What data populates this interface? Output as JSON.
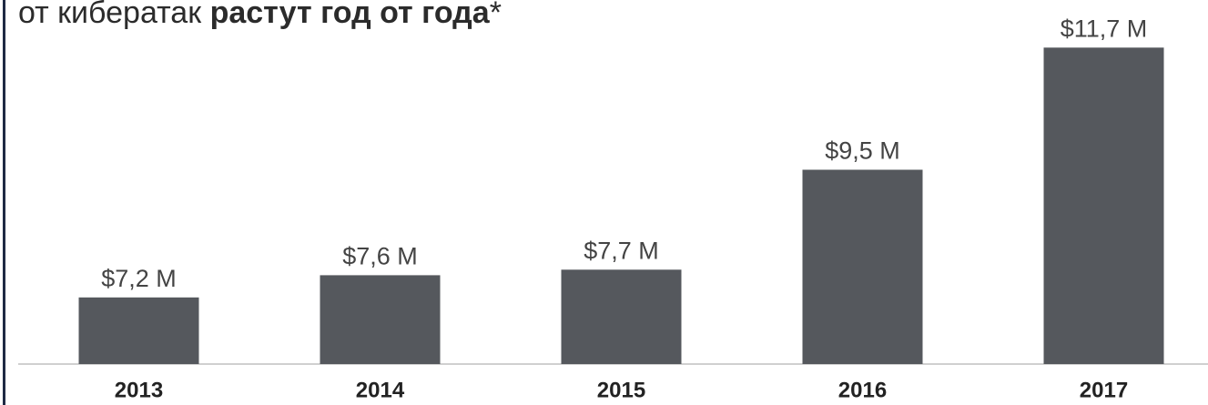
{
  "chart_data": {
    "type": "bar",
    "title": {
      "normal": "от кибератак",
      "bold": "растут год от года",
      "suffix": "*"
    },
    "categories": [
      "2013",
      "2014",
      "2015",
      "2016",
      "2017"
    ],
    "values": [
      7.2,
      7.6,
      7.7,
      9.5,
      11.7
    ],
    "value_labels": [
      "$7,2 M",
      "$7,6 M",
      "$7,7 M",
      "$9,5 M",
      "$11,7 M"
    ],
    "color": "#55585d",
    "ylim": [
      6,
      12
    ]
  }
}
